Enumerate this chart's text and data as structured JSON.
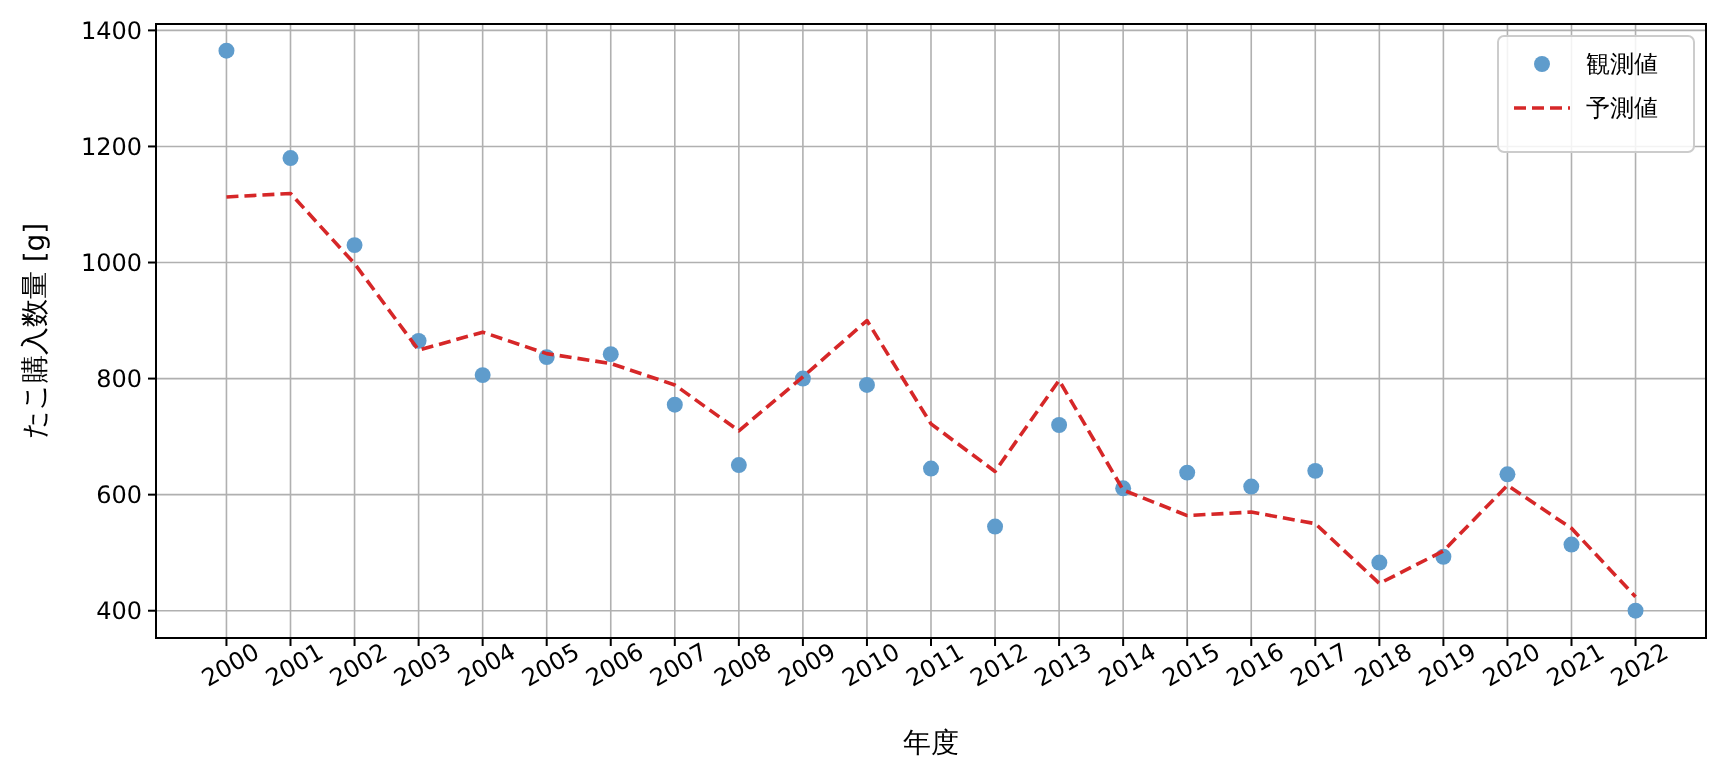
{
  "chart_data": {
    "type": "scatter",
    "xlabel": "年度",
    "ylabel": "たこ購入数量 [g]",
    "x": [
      2000,
      2001,
      2002,
      2003,
      2004,
      2005,
      2006,
      2007,
      2008,
      2009,
      2010,
      2011,
      2012,
      2013,
      2014,
      2015,
      2016,
      2017,
      2018,
      2019,
      2020,
      2021,
      2022
    ],
    "series": [
      {
        "name": "観測値",
        "color": "#5f9ccc",
        "marker": "circle",
        "values": [
          1365,
          1180,
          1030,
          865,
          806,
          837,
          842,
          755,
          651,
          800,
          789,
          645,
          545,
          720,
          611,
          638,
          614,
          641,
          483,
          493,
          635,
          514,
          400
        ]
      },
      {
        "name": "予測値",
        "type": "line",
        "color": "#d62728",
        "line_style": "dashed",
        "marker": "none",
        "values": [
          1113,
          1119,
          998,
          849,
          880,
          843,
          826,
          789,
          710,
          803,
          900,
          722,
          640,
          797,
          608,
          564,
          570,
          550,
          447,
          503,
          616,
          542,
          424
        ]
      }
    ],
    "xlim": [
      1998.9,
      2023.1
    ],
    "xticks": [
      {
        "value": 2000,
        "label": "2000"
      },
      {
        "value": 2001,
        "label": "2001"
      },
      {
        "value": 2002,
        "label": "2002"
      },
      {
        "value": 2003,
        "label": "2003"
      },
      {
        "value": 2004,
        "label": "2004"
      },
      {
        "value": 2005,
        "label": "2005"
      },
      {
        "value": 2006,
        "label": "2006"
      },
      {
        "value": 2007,
        "label": "2007"
      },
      {
        "value": 2008,
        "label": "2008"
      },
      {
        "value": 2009,
        "label": "2009"
      },
      {
        "value": 2010,
        "label": "2010"
      },
      {
        "value": 2011,
        "label": "2011"
      },
      {
        "value": 2012,
        "label": "2012"
      },
      {
        "value": 2013,
        "label": "2013"
      },
      {
        "value": 2014,
        "label": "2014"
      },
      {
        "value": 2015,
        "label": "2015"
      },
      {
        "value": 2016,
        "label": "2016"
      },
      {
        "value": 2017,
        "label": "2017"
      },
      {
        "value": 2018,
        "label": "2018"
      },
      {
        "value": 2019,
        "label": "2019"
      },
      {
        "value": 2020,
        "label": "2020"
      },
      {
        "value": 2021,
        "label": "2021"
      },
      {
        "value": 2022,
        "label": "2022"
      }
    ],
    "ylim": [
      353,
      1411
    ],
    "yticks": [
      400,
      600,
      800,
      1000,
      1200,
      1400
    ],
    "grid": true,
    "legend": "top right"
  }
}
